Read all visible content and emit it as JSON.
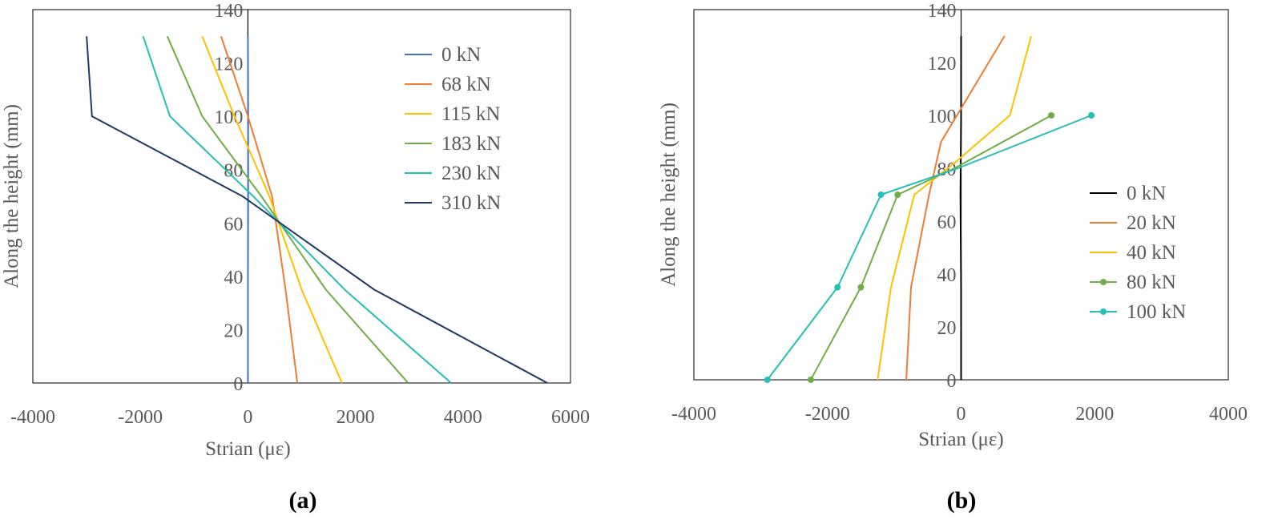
{
  "chart_data": [
    {
      "type": "line",
      "panel_label": "(a)",
      "xlabel": "Strian (με)",
      "ylabel": "Along the height (mm)",
      "xlim": [
        -4000,
        6000
      ],
      "ylim": [
        0,
        140
      ],
      "xticks": [
        -4000,
        -2000,
        0,
        2000,
        4000,
        6000
      ],
      "yticks": [
        0,
        20,
        40,
        60,
        80,
        100,
        120,
        140
      ],
      "legend_position": "top-right",
      "series": [
        {
          "name": "0 kN",
          "color": "#4472C4",
          "markers": false,
          "points": [
            [
              0,
              0
            ],
            [
              0,
              35
            ],
            [
              5,
              70
            ],
            [
              5,
              100
            ],
            [
              0,
              130
            ]
          ]
        },
        {
          "name": "68 kN",
          "color": "#ED7D31",
          "markers": false,
          "points": [
            [
              920,
              0
            ],
            [
              700,
              35
            ],
            [
              450,
              70
            ],
            [
              0,
              100
            ],
            [
              -500,
              130
            ]
          ]
        },
        {
          "name": "115 kN",
          "color": "#FFC000",
          "markers": false,
          "points": [
            [
              1750,
              0
            ],
            [
              1000,
              35
            ],
            [
              400,
              70
            ],
            [
              -250,
              100
            ],
            [
              -850,
              130
            ]
          ]
        },
        {
          "name": "183 kN",
          "color": "#70AD47",
          "markers": false,
          "points": [
            [
              2980,
              0
            ],
            [
              1450,
              35
            ],
            [
              250,
              70
            ],
            [
              -850,
              100
            ],
            [
              -1500,
              130
            ]
          ]
        },
        {
          "name": "230 kN",
          "color": "#26BFB5",
          "markers": false,
          "points": [
            [
              3780,
              0
            ],
            [
              1800,
              35
            ],
            [
              100,
              70
            ],
            [
              -1450,
              100
            ],
            [
              -1950,
              130
            ]
          ]
        },
        {
          "name": "310 kN",
          "color": "#203864",
          "markers": false,
          "points": [
            [
              5570,
              0
            ],
            [
              2350,
              35
            ],
            [
              -100,
              70
            ],
            [
              -2900,
              100
            ],
            [
              -3000,
              130
            ]
          ]
        }
      ]
    },
    {
      "type": "line",
      "panel_label": "(b)",
      "xlabel": "Strian (με)",
      "ylabel": "Along the height (mm)",
      "xlim": [
        -4000,
        4000
      ],
      "ylim": [
        0,
        140
      ],
      "xticks": [
        -4000,
        -2000,
        0,
        2000,
        4000
      ],
      "yticks": [
        0,
        20,
        40,
        60,
        80,
        100,
        120,
        140
      ],
      "legend_position": "right",
      "series": [
        {
          "name": "0 kN",
          "color": "#000000",
          "markers": false,
          "points": [
            [
              0,
              0
            ],
            [
              0,
              35
            ],
            [
              -10,
              70
            ],
            [
              0,
              100
            ],
            [
              0,
              130
            ]
          ]
        },
        {
          "name": "20 kN",
          "color": "#ED7D31",
          "markers": false,
          "points": [
            [
              -820,
              0
            ],
            [
              -750,
              35
            ],
            [
              -480,
              70
            ],
            [
              -300,
              90
            ],
            [
              650,
              130
            ]
          ]
        },
        {
          "name": "40 kN",
          "color": "#FFC000",
          "markers": false,
          "points": [
            [
              -1250,
              0
            ],
            [
              -1050,
              35
            ],
            [
              -700,
              70
            ],
            [
              -100,
              82
            ],
            [
              730,
              100
            ],
            [
              1050,
              130
            ]
          ]
        },
        {
          "name": "80 kN",
          "color": "#70AD47",
          "markers": true,
          "points": [
            [
              -2250,
              0
            ],
            [
              -1500,
              35
            ],
            [
              -950,
              70
            ],
            [
              -100,
              80
            ],
            [
              1350,
              100
            ]
          ]
        },
        {
          "name": "100 kN",
          "color": "#26BFB5",
          "markers": true,
          "points": [
            [
              -2900,
              0
            ],
            [
              -1850,
              35
            ],
            [
              -1200,
              70
            ],
            [
              -50,
              80
            ],
            [
              1950,
              100
            ]
          ]
        }
      ]
    }
  ]
}
